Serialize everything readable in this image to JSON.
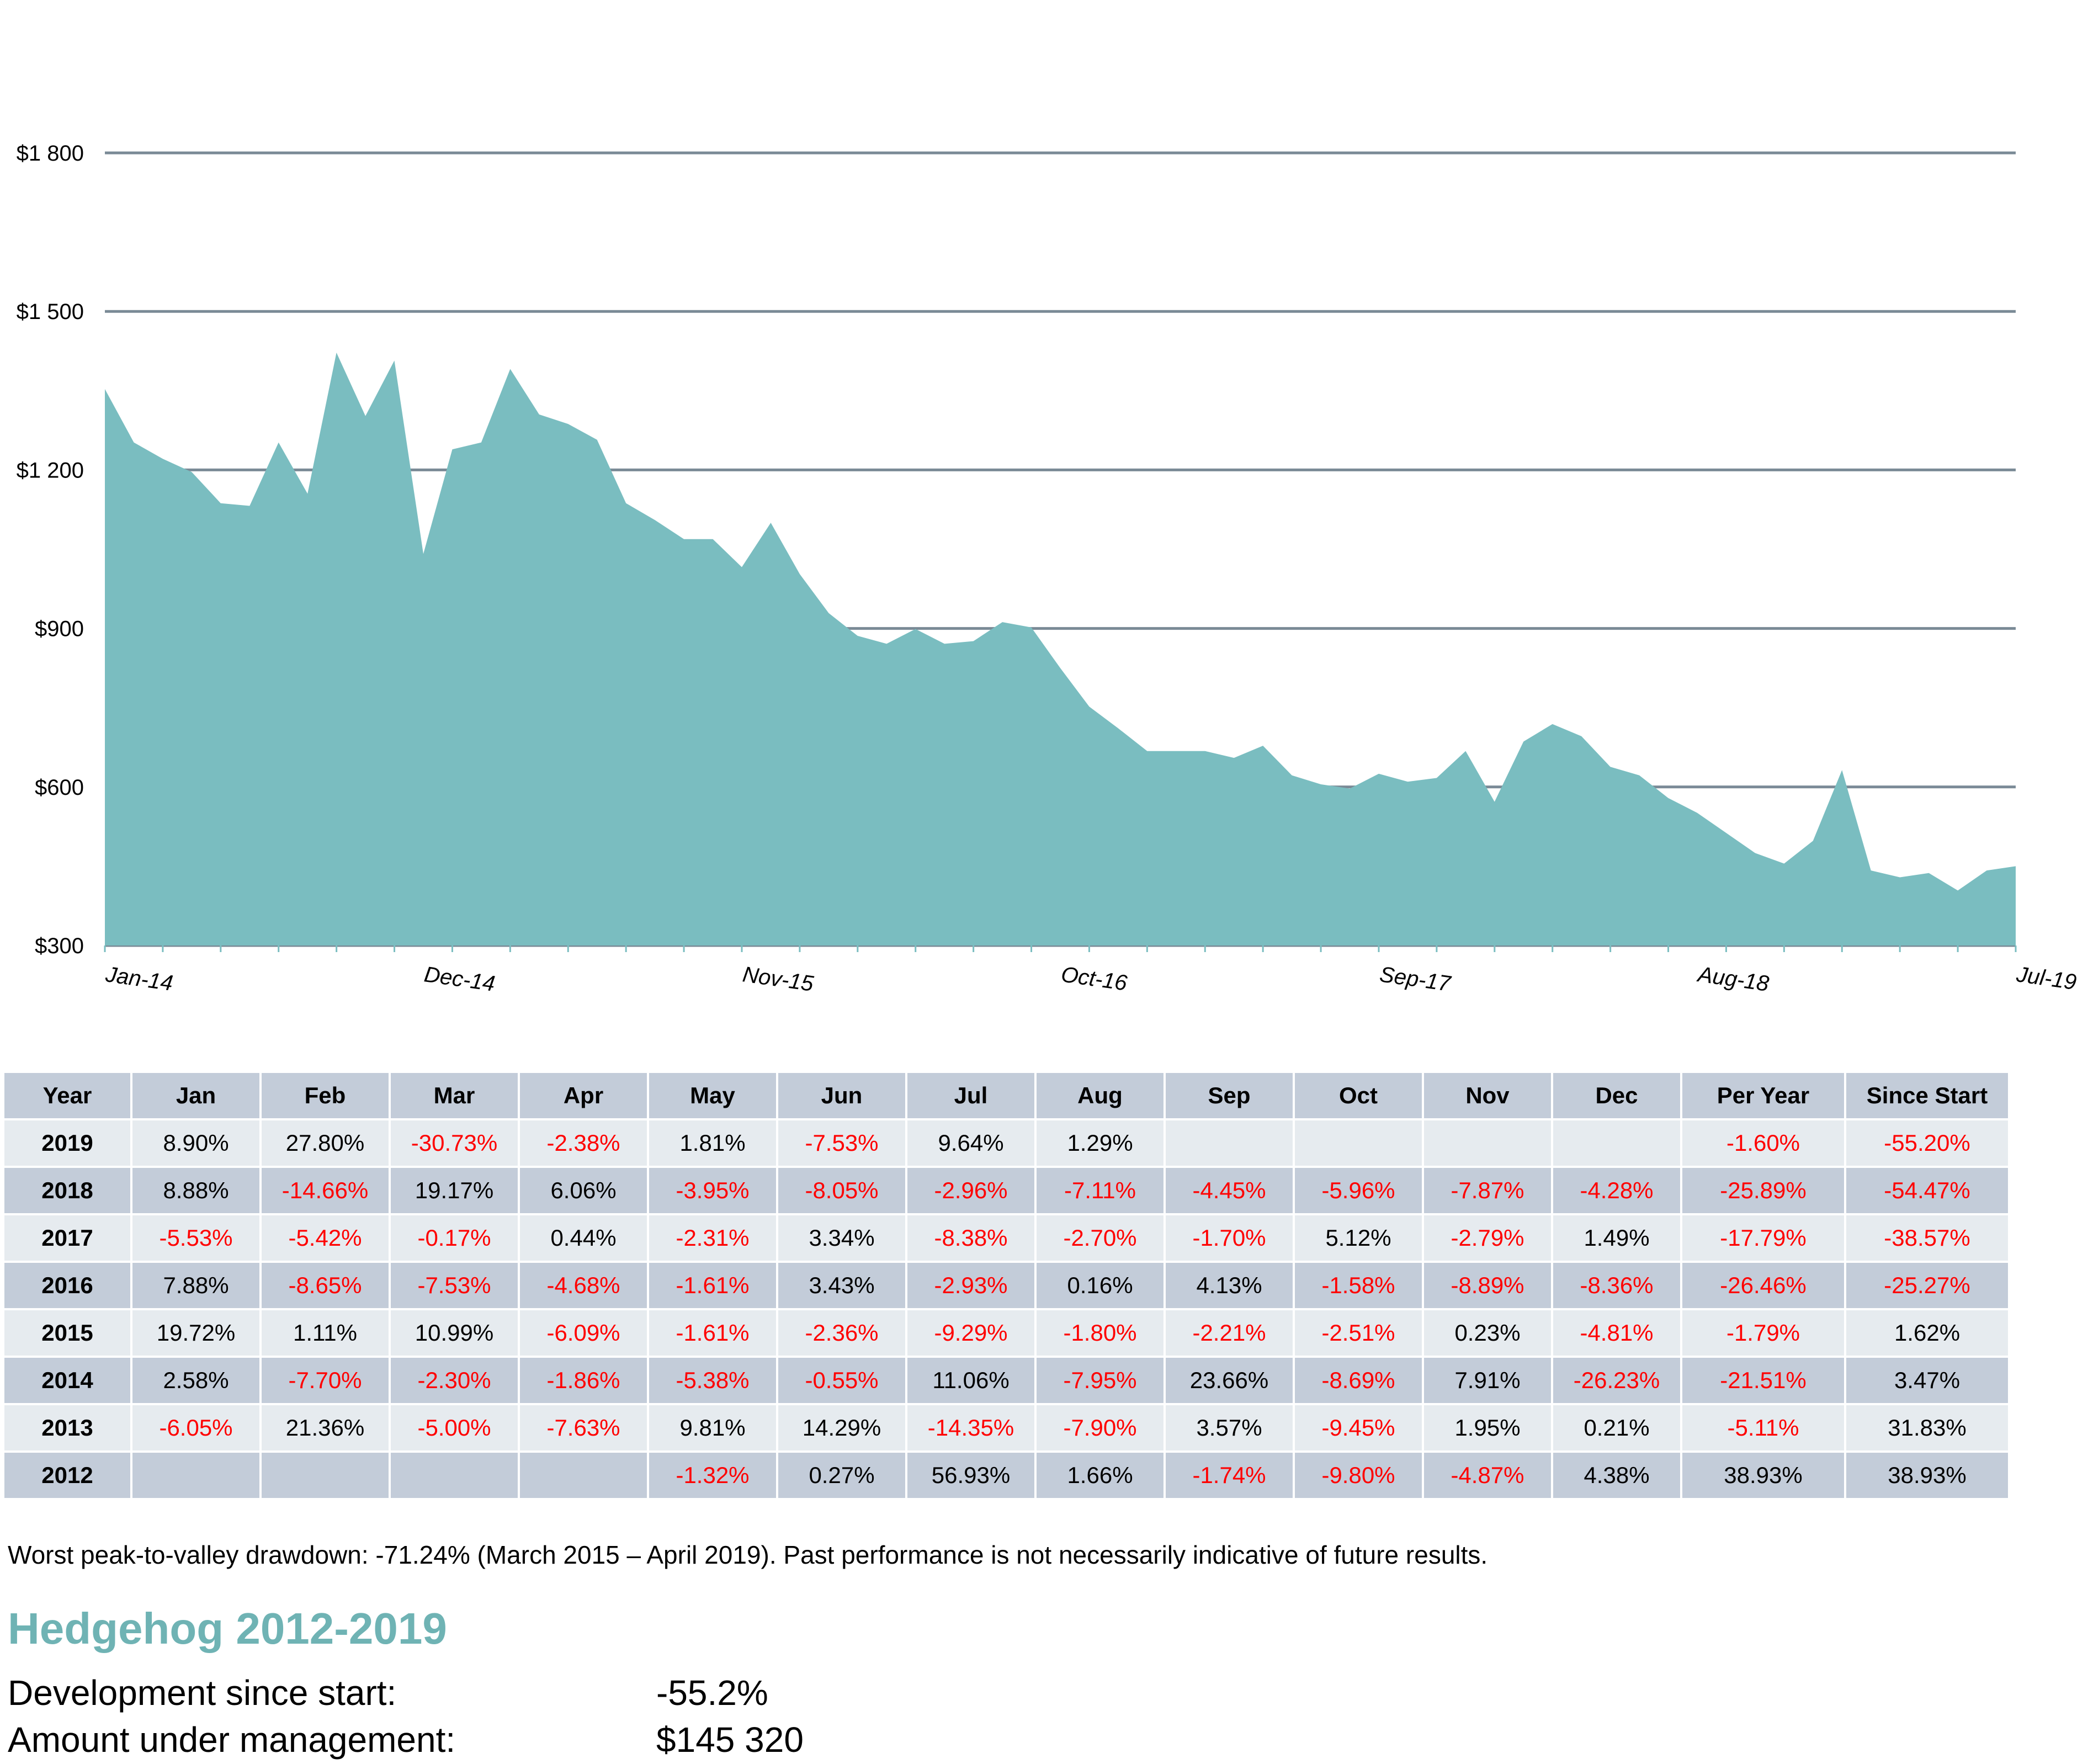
{
  "colors": {
    "area": "#7abdc0",
    "grid": "#7a8a96",
    "negative": "#ff0000",
    "title": "#6fb3b4",
    "header_bg": "#c3ccd9",
    "row_light": "#e6ebef",
    "row_dark": "#c3ccd9"
  },
  "chart_data": {
    "type": "area",
    "title": "",
    "xlabel": "",
    "ylabel": "",
    "ylim": [
      300,
      1800
    ],
    "yticks": [
      300,
      600,
      900,
      1200,
      1500,
      1800
    ],
    "ytick_labels": [
      "$300",
      "$600",
      "$900",
      "$1 200",
      "$1 500",
      "$1 800"
    ],
    "xtick_labels": [
      "Jan-14",
      "Dec-14",
      "Nov-15",
      "Oct-16",
      "Sep-17",
      "Aug-18",
      "Jul-19"
    ],
    "xtick_index": [
      0,
      11,
      22,
      33,
      44,
      55,
      66
    ],
    "grid": true,
    "legend": "none",
    "x_start": "Jan-14",
    "x_end": "Jul-19",
    "values": [
      1353,
      1252,
      1221,
      1196,
      1137,
      1132,
      1252,
      1155,
      1422,
      1302,
      1407,
      1041,
      1239,
      1252,
      1391,
      1305,
      1287,
      1257,
      1137,
      1105,
      1069,
      1069,
      1016,
      1100,
      1003,
      929,
      886,
      871,
      899,
      871,
      876,
      912,
      902,
      825,
      752,
      711,
      668,
      668,
      668,
      655,
      678,
      622,
      605,
      597,
      625,
      610,
      617,
      668,
      572,
      686,
      719,
      696,
      638,
      622,
      579,
      551,
      513,
      475,
      455,
      498,
      632,
      442,
      429,
      437,
      404,
      442,
      450
    ]
  },
  "table": {
    "headers": [
      "Year",
      "Jan",
      "Feb",
      "Mar",
      "Apr",
      "May",
      "Jun",
      "Jul",
      "Aug",
      "Sep",
      "Oct",
      "Nov",
      "Dec",
      "Per Year",
      "Since Start"
    ],
    "rows": [
      [
        "2019",
        "8.90%",
        "27.80%",
        "-30.73%",
        "-2.38%",
        "1.81%",
        "-7.53%",
        "9.64%",
        "1.29%",
        "",
        "",
        "",
        "",
        "-1.60%",
        "-55.20%"
      ],
      [
        "2018",
        "8.88%",
        "-14.66%",
        "19.17%",
        "6.06%",
        "-3.95%",
        "-8.05%",
        "-2.96%",
        "-7.11%",
        "-4.45%",
        "-5.96%",
        "-7.87%",
        "-4.28%",
        "-25.89%",
        "-54.47%"
      ],
      [
        "2017",
        "-5.53%",
        "-5.42%",
        "-0.17%",
        "0.44%",
        "-2.31%",
        "3.34%",
        "-8.38%",
        "-2.70%",
        "-1.70%",
        "5.12%",
        "-2.79%",
        "1.49%",
        "-17.79%",
        "-38.57%"
      ],
      [
        "2016",
        "7.88%",
        "-8.65%",
        "-7.53%",
        "-4.68%",
        "-1.61%",
        "3.43%",
        "-2.93%",
        "0.16%",
        "4.13%",
        "-1.58%",
        "-8.89%",
        "-8.36%",
        "-26.46%",
        "-25.27%"
      ],
      [
        "2015",
        "19.72%",
        "1.11%",
        "10.99%",
        "-6.09%",
        "-1.61%",
        "-2.36%",
        "-9.29%",
        "-1.80%",
        "-2.21%",
        "-2.51%",
        "0.23%",
        "-4.81%",
        "-1.79%",
        "1.62%"
      ],
      [
        "2014",
        "2.58%",
        "-7.70%",
        "-2.30%",
        "-1.86%",
        "-5.38%",
        "-0.55%",
        "11.06%",
        "-7.95%",
        "23.66%",
        "-8.69%",
        "7.91%",
        "-26.23%",
        "-21.51%",
        "3.47%"
      ],
      [
        "2013",
        "-6.05%",
        "21.36%",
        "-5.00%",
        "-7.63%",
        "9.81%",
        "14.29%",
        "-14.35%",
        "-7.90%",
        "3.57%",
        "-9.45%",
        "1.95%",
        "0.21%",
        "-5.11%",
        "31.83%"
      ],
      [
        "2012",
        "",
        "",
        "",
        "",
        "-1.32%",
        "0.27%",
        "56.93%",
        "1.66%",
        "-1.74%",
        "-9.80%",
        "-4.87%",
        "4.38%",
        "38.93%",
        "38.93%"
      ]
    ]
  },
  "note": "Worst peak-to-valley drawdown: -71.24%  (March 2015 – April 2019). Past performance is not necessarily indicative of future results.",
  "fund": {
    "title": "Hedgehog 2012-2019",
    "development_label": "Development since start:",
    "development_value": "-55.2%",
    "aum_label": "Amount under management:",
    "aum_value": "$145 320"
  }
}
